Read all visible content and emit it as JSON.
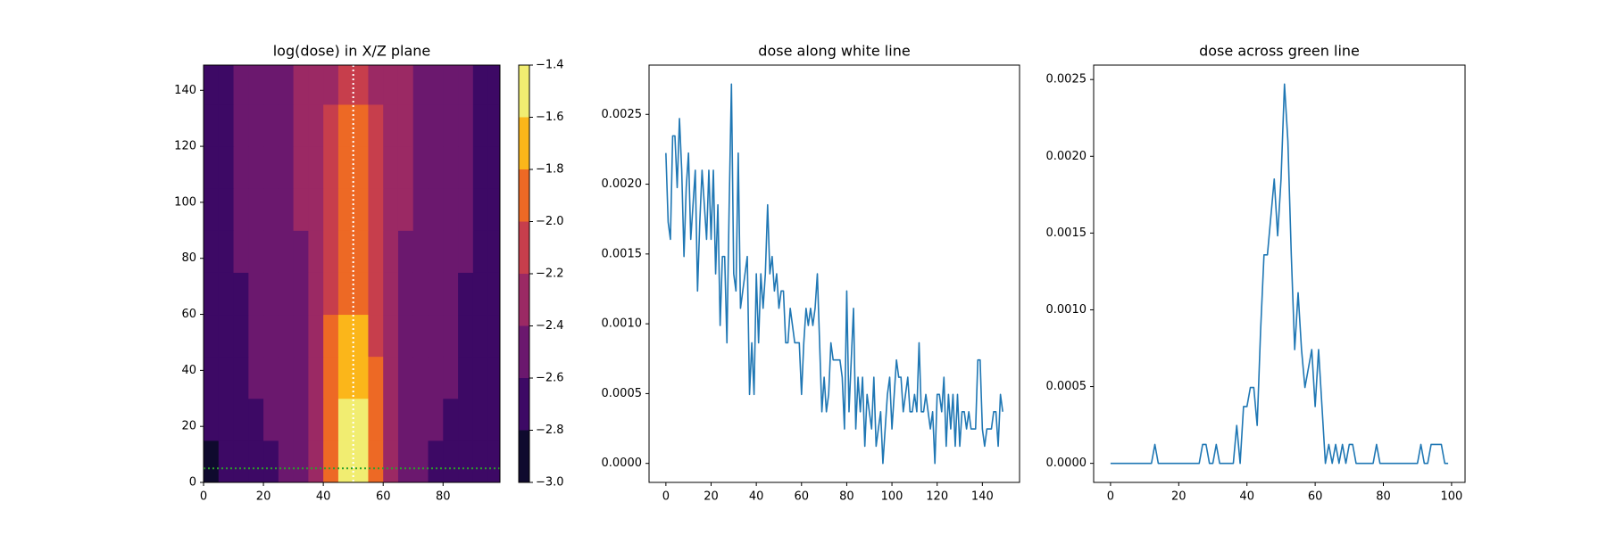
{
  "chart_data": [
    {
      "type": "contour",
      "title": "log(dose) in X/Z plane",
      "x": [
        2.5,
        7.5,
        12.5,
        17.5,
        22.5,
        27.5,
        32.5,
        37.5,
        42.5,
        47.5,
        52.5,
        57.5,
        62.5,
        67.5,
        72.5,
        77.5,
        82.5,
        87.5,
        92.5,
        97.5
      ],
      "y": [
        7.5,
        22.5,
        37.5,
        52.5,
        67.5,
        82.5,
        97.5,
        112.5,
        127.5,
        142.5
      ],
      "z": [
        [
          -2.85,
          -2.8,
          -2.75,
          -2.7,
          -2.65,
          -2.6,
          -2.55,
          -2.3,
          -1.9,
          -1.5,
          -1.5,
          -1.95,
          -2.35,
          -2.55,
          -2.6,
          -2.65,
          -2.7,
          -2.75,
          -2.8,
          -2.8
        ],
        [
          -2.8,
          -2.75,
          -2.7,
          -2.65,
          -2.6,
          -2.55,
          -2.5,
          -2.3,
          -1.9,
          -1.6,
          -1.6,
          -1.95,
          -2.3,
          -2.5,
          -2.55,
          -2.6,
          -2.65,
          -2.7,
          -2.75,
          -2.75
        ],
        [
          -2.75,
          -2.7,
          -2.65,
          -2.6,
          -2.55,
          -2.5,
          -2.45,
          -2.3,
          -1.95,
          -1.7,
          -1.7,
          -2.0,
          -2.3,
          -2.45,
          -2.5,
          -2.55,
          -2.6,
          -2.65,
          -2.7,
          -2.7
        ],
        [
          -2.7,
          -2.7,
          -2.65,
          -2.6,
          -2.55,
          -2.5,
          -2.45,
          -2.3,
          -2.0,
          -1.75,
          -1.75,
          -2.05,
          -2.3,
          -2.45,
          -2.5,
          -2.55,
          -2.6,
          -2.65,
          -2.7,
          -2.7
        ],
        [
          -2.7,
          -2.7,
          -2.65,
          -2.6,
          -2.55,
          -2.5,
          -2.45,
          -2.3,
          -2.05,
          -1.85,
          -1.85,
          -2.05,
          -2.3,
          -2.45,
          -2.5,
          -2.55,
          -2.6,
          -2.65,
          -2.7,
          -2.7
        ],
        [
          -2.7,
          -2.65,
          -2.6,
          -2.55,
          -2.5,
          -2.45,
          -2.45,
          -2.3,
          -2.1,
          -1.9,
          -1.9,
          -2.1,
          -2.3,
          -2.45,
          -2.5,
          -2.5,
          -2.55,
          -2.6,
          -2.65,
          -2.7
        ],
        [
          -2.7,
          -2.65,
          -2.6,
          -2.55,
          -2.5,
          -2.45,
          -2.4,
          -2.35,
          -2.1,
          -1.9,
          -1.9,
          -2.1,
          -2.35,
          -2.4,
          -2.45,
          -2.5,
          -2.55,
          -2.6,
          -2.65,
          -2.7
        ],
        [
          -2.7,
          -2.65,
          -2.6,
          -2.55,
          -2.5,
          -2.45,
          -2.4,
          -2.35,
          -2.15,
          -1.95,
          -1.95,
          -2.15,
          -2.35,
          -2.4,
          -2.45,
          -2.5,
          -2.55,
          -2.6,
          -2.65,
          -2.7
        ],
        [
          -2.7,
          -2.65,
          -2.6,
          -2.55,
          -2.5,
          -2.45,
          -2.4,
          -2.35,
          -2.2,
          -1.95,
          -1.95,
          -2.2,
          -2.35,
          -2.4,
          -2.45,
          -2.5,
          -2.55,
          -2.6,
          -2.65,
          -2.7
        ],
        [
          -2.7,
          -2.65,
          -2.6,
          -2.55,
          -2.5,
          -2.45,
          -2.4,
          -2.4,
          -2.25,
          -2.05,
          -2.05,
          -2.25,
          -2.4,
          -2.4,
          -2.45,
          -2.5,
          -2.55,
          -2.6,
          -2.65,
          -2.7
        ]
      ],
      "levels": [
        {
          "value": -3.0,
          "label": "−3.0"
        },
        {
          "value": -2.8,
          "label": "−2.8"
        },
        {
          "value": -2.6,
          "label": "−2.6"
        },
        {
          "value": -2.4,
          "label": "−2.4"
        },
        {
          "value": -2.2,
          "label": "−2.2"
        },
        {
          "value": -2.0,
          "label": "−2.0"
        },
        {
          "value": -1.8,
          "label": "−1.8"
        },
        {
          "value": -1.6,
          "label": "−1.6"
        },
        {
          "value": -1.4,
          "label": "−1.4"
        }
      ],
      "colors": [
        "#0f0a2e",
        "#3d0965",
        "#6b186e",
        "#9b2964",
        "#c73e4c",
        "#ed6925",
        "#fbb61a",
        "#f1ed71"
      ],
      "xlim": [
        0,
        99
      ],
      "xticks": [
        0,
        20,
        40,
        60,
        80
      ],
      "ylim": [
        0,
        149
      ],
      "yticks": [
        0,
        20,
        40,
        60,
        80,
        100,
        120,
        140
      ],
      "vline_x": 50,
      "vline_color": "#ffffff",
      "hline_y": 5,
      "hline_color": "#2ca02c"
    },
    {
      "type": "line",
      "title": "dose along white line",
      "color": "#1f77b4",
      "x": [
        0,
        1,
        2,
        3,
        4,
        5,
        6,
        7,
        8,
        9,
        10,
        11,
        12,
        13,
        14,
        15,
        16,
        17,
        18,
        19,
        20,
        21,
        22,
        23,
        24,
        25,
        26,
        27,
        28,
        29,
        30,
        31,
        32,
        33,
        34,
        35,
        36,
        37,
        38,
        39,
        40,
        41,
        42,
        43,
        44,
        45,
        46,
        47,
        48,
        49,
        50,
        51,
        52,
        53,
        54,
        55,
        56,
        57,
        58,
        59,
        60,
        61,
        62,
        63,
        64,
        65,
        66,
        67,
        68,
        69,
        70,
        71,
        72,
        73,
        74,
        75,
        76,
        77,
        78,
        79,
        80,
        81,
        82,
        83,
        84,
        85,
        86,
        87,
        88,
        89,
        90,
        91,
        92,
        93,
        94,
        95,
        96,
        97,
        98,
        99,
        100,
        101,
        102,
        103,
        104,
        105,
        106,
        107,
        108,
        109,
        110,
        111,
        112,
        113,
        114,
        115,
        116,
        117,
        118,
        119,
        120,
        121,
        122,
        123,
        124,
        125,
        126,
        127,
        128,
        129,
        130,
        131,
        132,
        133,
        134,
        135,
        136,
        137,
        138,
        139,
        140,
        141,
        142,
        143,
        144,
        145,
        146,
        147,
        148,
        149
      ],
      "values": [
        0.002223,
        0.001729,
        0.001605,
        0.002346,
        0.002346,
        0.001976,
        0.00247,
        0.0021,
        0.001482,
        0.001976,
        0.002223,
        0.001605,
        0.001852,
        0.0021,
        0.001235,
        0.001729,
        0.0021,
        0.001852,
        0.001605,
        0.0021,
        0.001605,
        0.0021,
        0.001358,
        0.001852,
        0.000988,
        0.001482,
        0.001482,
        0.000864,
        0.001852,
        0.002717,
        0.001358,
        0.001235,
        0.002223,
        0.001111,
        0.001235,
        0.001358,
        0.001482,
        0.000494,
        0.000864,
        0.000494,
        0.001358,
        0.000864,
        0.001358,
        0.001111,
        0.001358,
        0.001852,
        0.001358,
        0.001482,
        0.001235,
        0.001358,
        0.001111,
        0.001235,
        0.001235,
        0.000864,
        0.000864,
        0.001111,
        0.000988,
        0.000864,
        0.000864,
        0.000864,
        0.000494,
        0.000864,
        0.001111,
        0.000988,
        0.001111,
        0.000988,
        0.001111,
        0.001358,
        0.000864,
        0.00037,
        0.000617,
        0.00037,
        0.000494,
        0.000864,
        0.000741,
        0.000741,
        0.000741,
        0.000741,
        0.000617,
        0.000247,
        0.001235,
        0.00037,
        0.000741,
        0.001111,
        0.000247,
        0.000617,
        0.00037,
        0.000617,
        0.000123,
        0.000494,
        0.00037,
        0.000247,
        0.000617,
        0.000123,
        0.000247,
        0.00037,
        0,
        0.000247,
        0.000494,
        0.000617,
        0.000247,
        0.000494,
        0.000741,
        0.000617,
        0.000617,
        0.00037,
        0.000494,
        0.000617,
        0.00037,
        0.00037,
        0.000494,
        0.00037,
        0.000864,
        0.00037,
        0.00037,
        0.000494,
        0.00037,
        0.000247,
        0.00037,
        0,
        0.000494,
        0.000494,
        0.00037,
        0.000617,
        0.000123,
        0.000494,
        0.000247,
        0.000494,
        0.000123,
        0.000494,
        0.000123,
        0.00037,
        0.00037,
        0.000247,
        0.00037,
        0.000247,
        0.000247,
        0.000247,
        0.000741,
        0.000741,
        0.000247,
        0.000123,
        0.000247,
        0.000247,
        0.000247,
        0.00037,
        0.00037,
        0.000123,
        0.000494,
        0.00037
      ],
      "xlim": [
        -7.45,
        156.45
      ],
      "xticks": [
        0,
        20,
        40,
        60,
        80,
        100,
        120,
        140
      ],
      "ylim": [
        -0.000136,
        0.002853
      ],
      "yticks": [
        {
          "value": 0,
          "label": "0.0000"
        },
        {
          "value": 0.0005,
          "label": "0.0005"
        },
        {
          "value": 0.001,
          "label": "0.0010"
        },
        {
          "value": 0.0015,
          "label": "0.0015"
        },
        {
          "value": 0.002,
          "label": "0.0020"
        },
        {
          "value": 0.0025,
          "label": "0.0025"
        }
      ]
    },
    {
      "type": "line",
      "title": "dose across green line",
      "color": "#1f77b4",
      "x": [
        0,
        1,
        2,
        3,
        4,
        5,
        6,
        7,
        8,
        9,
        10,
        11,
        12,
        13,
        14,
        15,
        16,
        17,
        18,
        19,
        20,
        21,
        22,
        23,
        24,
        25,
        26,
        27,
        28,
        29,
        30,
        31,
        32,
        33,
        34,
        35,
        36,
        37,
        38,
        39,
        40,
        41,
        42,
        43,
        44,
        45,
        46,
        47,
        48,
        49,
        50,
        51,
        52,
        53,
        54,
        55,
        56,
        57,
        58,
        59,
        60,
        61,
        62,
        63,
        64,
        65,
        66,
        67,
        68,
        69,
        70,
        71,
        72,
        73,
        74,
        75,
        76,
        77,
        78,
        79,
        80,
        81,
        82,
        83,
        84,
        85,
        86,
        87,
        88,
        89,
        90,
        91,
        92,
        93,
        94,
        95,
        96,
        97,
        98,
        99
      ],
      "values": [
        0,
        0,
        0,
        0,
        0,
        0,
        0,
        0,
        0,
        0,
        0,
        0,
        0,
        0.000123,
        0,
        0,
        0,
        0,
        0,
        0,
        0,
        0,
        0,
        0,
        0,
        0,
        0,
        0.000123,
        0.000123,
        0,
        0,
        0.000123,
        0,
        0,
        0,
        0,
        0,
        0.000247,
        0,
        0.00037,
        0.00037,
        0.000494,
        0.000494,
        0.000247,
        0.000864,
        0.001358,
        0.001358,
        0.001605,
        0.001852,
        0.001482,
        0.001852,
        0.00247,
        0.0021,
        0.001358,
        0.000741,
        0.001111,
        0.000741,
        0.000494,
        0.000617,
        0.000741,
        0.00037,
        0.000741,
        0.00037,
        0,
        0.000123,
        0,
        0.000123,
        0,
        0.000123,
        0,
        0.000123,
        0.000123,
        0,
        0,
        0,
        0,
        0,
        0,
        0.000123,
        0,
        0,
        0,
        0,
        0,
        0,
        0,
        0,
        0,
        0,
        0,
        0,
        0.000123,
        0,
        0,
        0.000123,
        0.000123,
        0.000123,
        0.000123,
        0,
        0
      ],
      "xlim": [
        -4.95,
        103.95
      ],
      "xticks": [
        0,
        20,
        40,
        60,
        80,
        100
      ],
      "ylim": [
        -0.000124,
        0.002594
      ],
      "yticks": [
        {
          "value": 0,
          "label": "0.0000"
        },
        {
          "value": 0.0005,
          "label": "0.0005"
        },
        {
          "value": 0.001,
          "label": "0.0010"
        },
        {
          "value": 0.0015,
          "label": "0.0015"
        },
        {
          "value": 0.002,
          "label": "0.0020"
        },
        {
          "value": 0.0025,
          "label": "0.0025"
        }
      ]
    }
  ]
}
